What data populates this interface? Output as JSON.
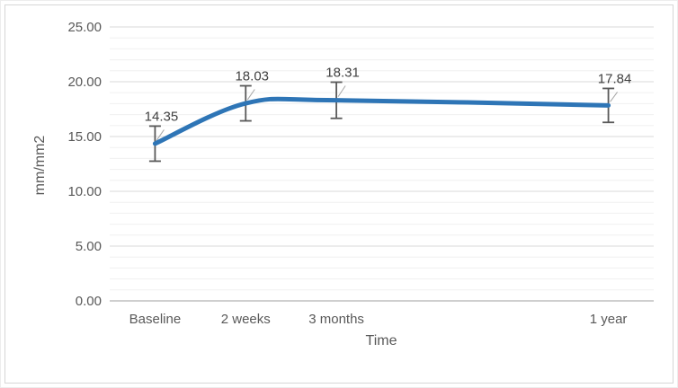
{
  "chart_data": {
    "type": "line",
    "title": "",
    "xlabel": "Time",
    "ylabel": "mm/mm2",
    "x_axis_type": "category",
    "category_slots": [
      "Baseline",
      "2 weeks",
      "3 months",
      "",
      "",
      "1 year"
    ],
    "points": [
      {
        "category": "Baseline",
        "slot": 0,
        "value": 14.35,
        "value_label": "14.35",
        "error": 1.6
      },
      {
        "category": "2 weeks",
        "slot": 1,
        "value": 18.03,
        "value_label": "18.03",
        "error": 1.6
      },
      {
        "category": "3 months",
        "slot": 2,
        "value": 18.31,
        "value_label": "18.31",
        "error": 1.65
      },
      {
        "category": "1 year",
        "slot": 5,
        "value": 17.84,
        "value_label": "17.84",
        "error": 1.55
      }
    ],
    "line": {
      "smoothed": true,
      "color": "#2E75B6",
      "width": 5
    },
    "markers": "none",
    "legend": "none",
    "ylim": [
      0,
      25
    ],
    "y_major_step": 5,
    "y_minor_step": 1,
    "y_tick_labels": [
      "0.00",
      "5.00",
      "10.00",
      "15.00",
      "20.00",
      "25.00"
    ],
    "grid": {
      "major": true,
      "minor": true,
      "major_color": "#D9D9D9",
      "minor_color": "#F0F0F0"
    },
    "axis_line_color": "#BFBFBF",
    "error_bar_color": "#595959",
    "leader_line_color": "#A6A6A6",
    "text_color": "#595959",
    "data_label_color": "#404040",
    "frame_border_color": "#D6D6D6"
  }
}
